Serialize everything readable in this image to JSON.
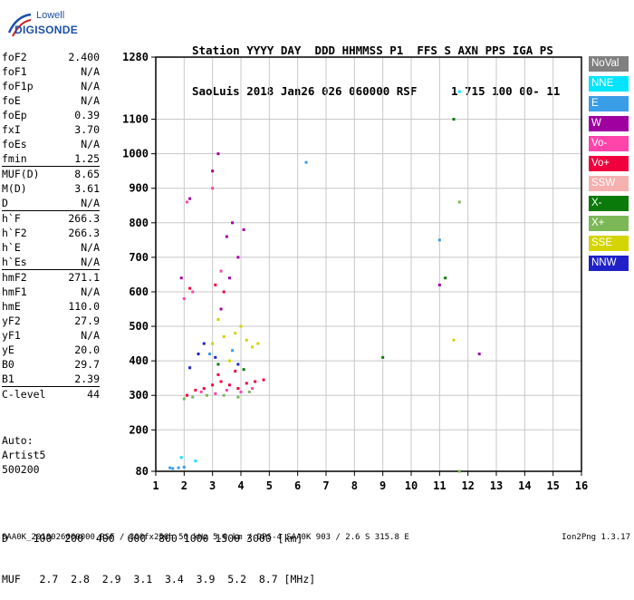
{
  "header": {
    "line1": "Station YYYY DAY  DDD HHMMSS P1  FFS S AXN PPS IGA PS",
    "line2": "SaoLuis 2018 Jan26 026 060000 RSF     1 715 100 00- 11"
  },
  "logo": {
    "brand": "Lowell",
    "product": "DIGISONDE"
  },
  "params": [
    [
      {
        "name": "foF2",
        "value": "2.400"
      },
      {
        "name": "foF1",
        "value": "N/A"
      },
      {
        "name": "foF1p",
        "value": "N/A"
      },
      {
        "name": "foE",
        "value": "N/A"
      },
      {
        "name": "foEp",
        "value": "0.39"
      },
      {
        "name": "fxI",
        "value": "3.70"
      },
      {
        "name": "foEs",
        "value": "N/A"
      },
      {
        "name": "fmin",
        "value": "1.25"
      }
    ],
    [
      {
        "name": "MUF(D)",
        "value": "8.65"
      },
      {
        "name": "M(D)",
        "value": "3.61"
      },
      {
        "name": "D",
        "value": "N/A"
      }
    ],
    [
      {
        "name": "h`F",
        "value": "266.3"
      },
      {
        "name": "h`F2",
        "value": "266.3"
      },
      {
        "name": "h`E",
        "value": "N/A"
      },
      {
        "name": "h`Es",
        "value": "N/A"
      }
    ],
    [
      {
        "name": "hmF2",
        "value": "271.1"
      },
      {
        "name": "hmF1",
        "value": "N/A"
      },
      {
        "name": "hmE",
        "value": "110.0"
      },
      {
        "name": "yF2",
        "value": "27.9"
      },
      {
        "name": "yF1",
        "value": "N/A"
      },
      {
        "name": "yE",
        "value": "20.0"
      },
      {
        "name": "B0",
        "value": "29.7"
      },
      {
        "name": "B1",
        "value": "2.39"
      }
    ],
    [
      {
        "name": "C-level",
        "value": "44"
      }
    ]
  ],
  "notes": [
    "Auto:",
    "Artist5",
    "500200"
  ],
  "footer": {
    "d_row": "D    100  200  400  600  800 1000 1500 3000 [km]",
    "muf_row": "MUF   2.7  2.8  2.9  3.1  3.4  3.9  5.2  8.7 [MHz]",
    "file": "SAA0K_2018026060000.RSF / 300fx256h 50 kHz 5.0 km / DPS-4 SAA0K 903 / 2.6 S 315.8 E",
    "version": "Ion2Png 1.3.17"
  },
  "legend": [
    {
      "label": "NoVal",
      "color": "#808080"
    },
    {
      "label": "NNE",
      "color": "#00e5ff"
    },
    {
      "label": "E",
      "color": "#3a9de8"
    },
    {
      "label": "W",
      "color": "#a000a0"
    },
    {
      "label": "Vo-",
      "color": "#ff44aa"
    },
    {
      "label": "Vo+",
      "color": "#f0003c"
    },
    {
      "label": "SSW",
      "color": "#f5b0b0"
    },
    {
      "label": "X-",
      "color": "#0a7a0a"
    },
    {
      "label": "X+",
      "color": "#7cb858"
    },
    {
      "label": "SSE",
      "color": "#d4d400"
    },
    {
      "label": "NNW",
      "color": "#2020c8"
    }
  ],
  "chart_data": {
    "type": "scatter",
    "title": "",
    "xlabel": "",
    "ylabel": "",
    "xlim": [
      1,
      16
    ],
    "ylim": [
      80,
      1280
    ],
    "x_ticks": [
      1,
      2,
      3,
      4,
      5,
      6,
      7,
      8,
      9,
      10,
      11,
      12,
      13,
      14,
      15,
      16
    ],
    "y_ticks": [
      80,
      200,
      300,
      400,
      500,
      600,
      700,
      800,
      900,
      1000,
      1100,
      1280
    ],
    "grid": true,
    "series": [
      {
        "name": "Vo+",
        "color": "#f0003c",
        "points": [
          [
            3.0,
            330
          ],
          [
            3.3,
            340
          ],
          [
            3.6,
            330
          ],
          [
            3.9,
            320
          ],
          [
            4.2,
            335
          ],
          [
            4.5,
            340
          ],
          [
            2.7,
            320
          ],
          [
            2.4,
            315
          ],
          [
            2.1,
            300
          ],
          [
            4.8,
            345
          ],
          [
            3.2,
            360
          ],
          [
            3.8,
            370
          ],
          [
            2.2,
            610
          ],
          [
            3.1,
            620
          ],
          [
            3.4,
            600
          ]
        ]
      },
      {
        "name": "Vo-",
        "color": "#ff44aa",
        "points": [
          [
            3.1,
            305
          ],
          [
            3.5,
            315
          ],
          [
            4.0,
            310
          ],
          [
            2.6,
            310
          ],
          [
            4.4,
            320
          ],
          [
            2.0,
            580
          ],
          [
            2.3,
            600
          ],
          [
            3.3,
            660
          ],
          [
            2.1,
            860
          ],
          [
            3.0,
            900
          ]
        ]
      },
      {
        "name": "W",
        "color": "#a000a0",
        "points": [
          [
            3.0,
            950
          ],
          [
            3.2,
            1000
          ],
          [
            3.7,
            800
          ],
          [
            3.5,
            760
          ],
          [
            2.2,
            870
          ],
          [
            3.9,
            700
          ],
          [
            4.1,
            780
          ],
          [
            3.6,
            640
          ],
          [
            1.9,
            640
          ],
          [
            3.3,
            550
          ],
          [
            12.4,
            420
          ],
          [
            11.0,
            620
          ]
        ]
      },
      {
        "name": "SSE",
        "color": "#d4d400",
        "points": [
          [
            3.0,
            450
          ],
          [
            3.4,
            470
          ],
          [
            3.8,
            480
          ],
          [
            4.2,
            460
          ],
          [
            4.6,
            450
          ],
          [
            3.2,
            520
          ],
          [
            4.0,
            500
          ],
          [
            4.4,
            440
          ],
          [
            2.9,
            420
          ],
          [
            3.6,
            400
          ],
          [
            11.5,
            460
          ]
        ]
      },
      {
        "name": "X+",
        "color": "#7cb858",
        "points": [
          [
            2.3,
            295
          ],
          [
            2.8,
            300
          ],
          [
            3.4,
            300
          ],
          [
            4.3,
            310
          ],
          [
            2.0,
            290
          ],
          [
            3.9,
            295
          ],
          [
            11.7,
            860
          ],
          [
            11.7,
            80
          ]
        ]
      },
      {
        "name": "X-",
        "color": "#0a7a0a",
        "points": [
          [
            11.2,
            640
          ],
          [
            11.5,
            1100
          ],
          [
            9.0,
            410
          ],
          [
            3.2,
            390
          ],
          [
            4.1,
            375
          ]
        ]
      },
      {
        "name": "E",
        "color": "#3a9de8",
        "points": [
          [
            1.5,
            90
          ],
          [
            1.8,
            90
          ],
          [
            2.0,
            92
          ],
          [
            1.6,
            88
          ],
          [
            2.9,
            420
          ],
          [
            3.7,
            430
          ],
          [
            6.3,
            975
          ],
          [
            11.0,
            750
          ]
        ]
      },
      {
        "name": "NNW",
        "color": "#2020c8",
        "points": [
          [
            2.2,
            380
          ],
          [
            2.5,
            420
          ],
          [
            3.9,
            390
          ],
          [
            2.7,
            450
          ],
          [
            3.1,
            410
          ]
        ]
      },
      {
        "name": "NNE",
        "color": "#00e5ff",
        "points": [
          [
            11.7,
            1180
          ],
          [
            1.9,
            120
          ],
          [
            2.4,
            110
          ]
        ]
      }
    ]
  }
}
